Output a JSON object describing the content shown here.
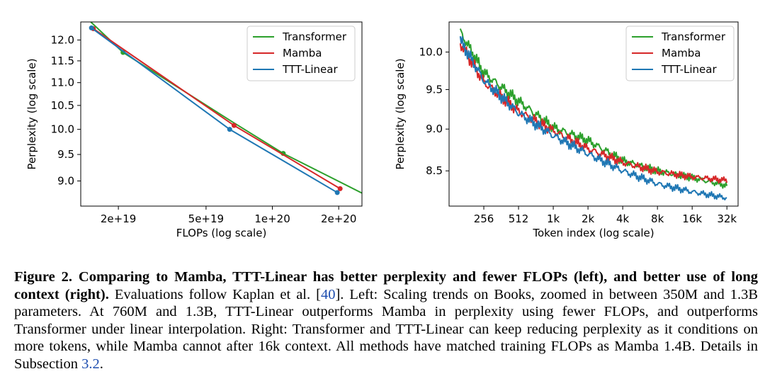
{
  "chart_data": [
    {
      "type": "line",
      "xlabel": "FLOPs (log scale)",
      "ylabel": "Perplexity (log scale)",
      "xscale": "log",
      "yscale": "log",
      "xlim": [
        1.35e+19,
        2.55e+20
      ],
      "ylim": [
        8.55,
        12.45
      ],
      "xticks": [
        {
          "value": 2e+19,
          "label": "2e+19"
        },
        {
          "value": 5e+19,
          "label": "5e+19"
        },
        {
          "value": 1e+20,
          "label": "1e+20"
        },
        {
          "value": 2e+20,
          "label": "2e+20"
        }
      ],
      "yticks": [
        {
          "value": 9.0,
          "label": "9.0"
        },
        {
          "value": 9.5,
          "label": "9.5"
        },
        {
          "value": 10.0,
          "label": "10.0"
        },
        {
          "value": 10.5,
          "label": "10.5"
        },
        {
          "value": 11.0,
          "label": "11.0"
        },
        {
          "value": 11.5,
          "label": "11.5"
        },
        {
          "value": 12.0,
          "label": "12.0"
        }
      ],
      "legend_position": "top-right",
      "series": [
        {
          "name": "Transformer",
          "color": "#2ca02c",
          "points": [
            [
              1.5e+19,
              12.45
            ],
            [
              2.1e+19,
              11.7
            ],
            [
              6.6e+19,
              10.15
            ],
            [
              1.12e+20,
              9.52
            ],
            [
              2.55e+20,
              8.78
            ]
          ],
          "markers": [
            [
              2.1e+19,
              11.7
            ],
            [
              1.12e+20,
              9.52
            ]
          ]
        },
        {
          "name": "Mamba",
          "color": "#d62728",
          "points": [
            [
              1.54e+19,
              12.28
            ],
            [
              6.7e+19,
              10.08
            ],
            [
              2.03e+20,
              8.86
            ]
          ],
          "markers": [
            [
              1.54e+19,
              12.28
            ],
            [
              6.7e+19,
              10.08
            ],
            [
              2.03e+20,
              8.86
            ]
          ]
        },
        {
          "name": "TTT-Linear",
          "color": "#1f77b4",
          "points": [
            [
              1.51e+19,
              12.3
            ],
            [
              6.4e+19,
              10.0
            ],
            [
              1.97e+20,
              8.79
            ]
          ],
          "markers": [
            [
              1.51e+19,
              12.3
            ],
            [
              6.4e+19,
              10.0
            ],
            [
              1.97e+20,
              8.79
            ]
          ]
        }
      ]
    },
    {
      "type": "line",
      "xlabel": "Token index (log scale)",
      "ylabel": "Perplexity (log scale)",
      "xscale": "log",
      "yscale": "log",
      "xlim": [
        128,
        40960
      ],
      "ylim": [
        8.1,
        10.42
      ],
      "xticks": [
        {
          "value": 256,
          "label": "256"
        },
        {
          "value": 512,
          "label": "512"
        },
        {
          "value": 1024,
          "label": "1k"
        },
        {
          "value": 2048,
          "label": "2k"
        },
        {
          "value": 4096,
          "label": "4k"
        },
        {
          "value": 8192,
          "label": "8k"
        },
        {
          "value": 16384,
          "label": "16k"
        },
        {
          "value": 32768,
          "label": "32k"
        }
      ],
      "yticks": [
        {
          "value": 8.5,
          "label": "8.5"
        },
        {
          "value": 9.0,
          "label": "9.0"
        },
        {
          "value": 9.5,
          "label": "9.5"
        },
        {
          "value": 10.0,
          "label": "10.0"
        }
      ],
      "legend_position": "top-right",
      "series": [
        {
          "name": "Transformer",
          "color": "#2ca02c",
          "points": [
            [
              160,
              10.28
            ],
            [
              256,
              9.72
            ],
            [
              512,
              9.35
            ],
            [
              1024,
              9.02
            ],
            [
              2048,
              8.86
            ],
            [
              4096,
              8.62
            ],
            [
              8192,
              8.5
            ],
            [
              16384,
              8.42
            ],
            [
              32768,
              8.33
            ]
          ]
        },
        {
          "name": "Mamba",
          "color": "#d62728",
          "points": [
            [
              160,
              10.12
            ],
            [
              256,
              9.6
            ],
            [
              512,
              9.22
            ],
            [
              1024,
              8.98
            ],
            [
              2048,
              8.76
            ],
            [
              4096,
              8.6
            ],
            [
              8192,
              8.49
            ],
            [
              16384,
              8.43
            ],
            [
              32768,
              8.39
            ]
          ]
        },
        {
          "name": "TTT-Linear",
          "color": "#1f77b4",
          "points": [
            [
              160,
              10.16
            ],
            [
              256,
              9.62
            ],
            [
              512,
              9.2
            ],
            [
              1024,
              8.92
            ],
            [
              2048,
              8.7
            ],
            [
              4096,
              8.5
            ],
            [
              8192,
              8.35
            ],
            [
              16384,
              8.26
            ],
            [
              32768,
              8.19
            ]
          ]
        }
      ]
    }
  ],
  "caption": {
    "label": "Figure 2.",
    "title": "Comparing to Mamba, TTT-Linear has better perplexity and fewer FLOPs (left), and better use of long context (right).",
    "text1": "Evaluations follow Kaplan et al. [",
    "ref1": "40",
    "text2": "]. Left: Scaling trends on Books, zoomed in between 350M and 1.3B parameters. At 760M and 1.3B, TTT-Linear outperforms Mamba in perplexity using fewer FLOPs, and outperforms Transformer under linear interpolation. Right: Transformer and TTT-Linear can keep reducing perplexity as it conditions on more tokens, while Mamba cannot after 16k context. All methods have matched training FLOPs as Mamba 1.4B. Details in Subsection ",
    "ref2": "3.2",
    "text3": "."
  }
}
